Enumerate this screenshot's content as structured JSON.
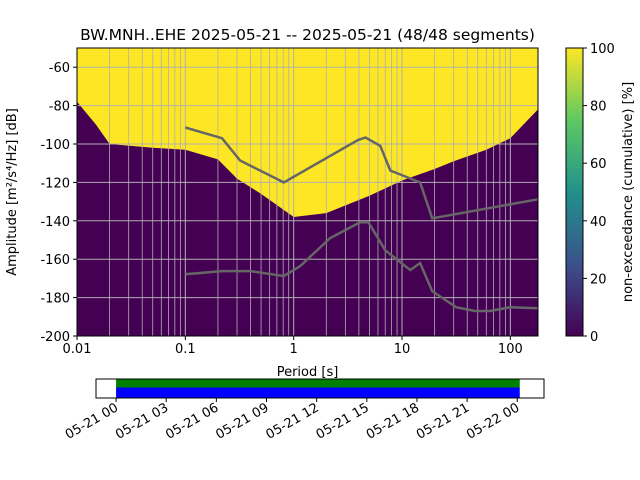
{
  "chart_data": {
    "type": "heatmap",
    "title": "BW.MNH..EHE   2025-05-21 -- 2025-05-21  (48/48 segments)",
    "xlabel": "Period [s]",
    "ylabel": "Amplitude [m²/s⁴/Hz] [dB]",
    "xscale": "log",
    "xlim": [
      0.01,
      180
    ],
    "ylim": [
      -200,
      -50
    ],
    "xticks": [
      {
        "v": 0.01,
        "l": "0.01"
      },
      {
        "v": 0.1,
        "l": "0.1"
      },
      {
        "v": 1,
        "l": "1"
      },
      {
        "v": 10,
        "l": "10"
      },
      {
        "v": 100,
        "l": "100"
      }
    ],
    "yticks": [
      -60,
      -80,
      -100,
      -120,
      -140,
      -160,
      -180,
      -200
    ],
    "grid": true,
    "coverage_boundary": [
      [
        0.01,
        -78
      ],
      [
        0.015,
        -90
      ],
      [
        0.02,
        -100
      ],
      [
        0.05,
        -102
      ],
      [
        0.1,
        -103
      ],
      [
        0.2,
        -108
      ],
      [
        0.3,
        -118
      ],
      [
        0.5,
        -126
      ],
      [
        1,
        -138
      ],
      [
        2,
        -136
      ],
      [
        5,
        -127
      ],
      [
        10,
        -119
      ],
      [
        20,
        -113
      ],
      [
        30,
        -109
      ],
      [
        60,
        -103
      ],
      [
        100,
        -97
      ],
      [
        180,
        -82
      ]
    ],
    "series": [
      {
        "name": "noise model high",
        "color": "#666666",
        "points": [
          [
            0.1,
            -91.4
          ],
          [
            0.218,
            -97
          ],
          [
            0.32,
            -108.6
          ],
          [
            0.81,
            -120
          ],
          [
            3.9,
            -98
          ],
          [
            4.6,
            -96.6
          ],
          [
            6.3,
            -101
          ],
          [
            7.8,
            -113.8
          ],
          [
            14.7,
            -120
          ],
          [
            19,
            -138.7
          ],
          [
            180,
            -128.8
          ]
        ]
      },
      {
        "name": "noise model low",
        "color": "#666666",
        "points": [
          [
            0.1,
            -167.8
          ],
          [
            0.218,
            -166.2
          ],
          [
            0.4,
            -166.2
          ],
          [
            0.81,
            -168.8
          ],
          [
            1.15,
            -163.6
          ],
          [
            2.17,
            -149
          ],
          [
            4.1,
            -140.8
          ],
          [
            4.9,
            -140.8
          ],
          [
            7,
            -155.3
          ],
          [
            11.9,
            -165.7
          ],
          [
            14.7,
            -162
          ],
          [
            19,
            -176.6
          ],
          [
            31.6,
            -185
          ],
          [
            47,
            -187
          ],
          [
            65,
            -187
          ],
          [
            100,
            -185
          ],
          [
            180,
            -185.5
          ]
        ]
      }
    ],
    "colorbar": {
      "label": "non-exceedance (cumulative) [%]",
      "range": [
        0,
        100
      ],
      "ticks": [
        0,
        20,
        40,
        60,
        80,
        100
      ]
    },
    "timeline": {
      "ticks": [
        "05-21 00",
        "05-21 03",
        "05-21 06",
        "05-21 09",
        "05-21 12",
        "05-21 15",
        "05-21 18",
        "05-21 21",
        "05-22 00"
      ],
      "coverage_start_hours": 0,
      "coverage_end_hours": 24.15,
      "axis_start_hours": -1.2,
      "axis_end_hours": 25.6,
      "colors": {
        "data": "#008000",
        "processed": "#0000ff"
      }
    }
  }
}
